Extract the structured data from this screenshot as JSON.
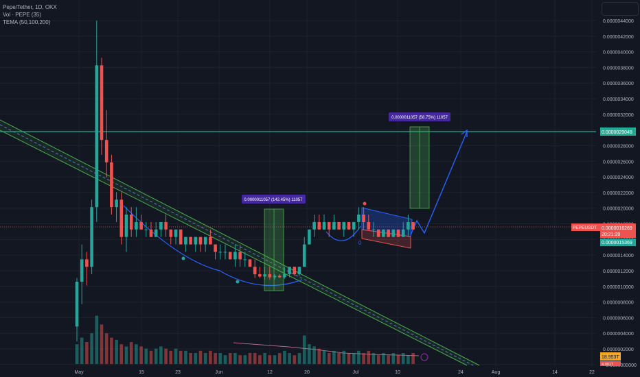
{
  "legend": {
    "symbol": "Pepe/Tether, 1D, OKX",
    "volume": "Vol · PEPE (35)",
    "tema": "TEMA (50,100,200)"
  },
  "price_axis": {
    "ticks": [
      "0.0000044000",
      "0.0000042000",
      "0.0000040000",
      "0.0000038000",
      "0.0000036000",
      "0.0000034000",
      "0.0000032000",
      "0.0000030000",
      "0.0000028000",
      "0.0000026000",
      "0.0000024000",
      "0.0000022000",
      "0.0000020000",
      "0.0000018000",
      "0.0000016000",
      "0.0000014000",
      "0.0000012000",
      "0.0000010000",
      "0.0000008000",
      "0.0000006000",
      "0.0000004000",
      "0.0000002000",
      "−0.0000000000"
    ],
    "target_label": "0.0000029048",
    "symbol_label": "PEPEUSDT",
    "last_price": "0.0000016269",
    "countdown": "20:21:39",
    "ma_value": "0.0000015369",
    "volume_label": "18.953T",
    "volume_label2": "4.991T"
  },
  "time_axis": {
    "labels": [
      "May",
      "15",
      "23",
      "Jun",
      "12",
      "20",
      "Jul",
      "10",
      "24",
      "Aug",
      "14",
      "22"
    ]
  },
  "annotations": {
    "measure1": "0.0000011057 (142.45%) 11057",
    "measure2": "0.0000011057 (58.75%) 11057",
    "marker_zero": "0"
  },
  "colors": {
    "background": "#131722",
    "up": "#26a69a",
    "down": "#ef5350",
    "target_line": "#22ab94",
    "curve": "#2962ff",
    "channel": "#4caf50",
    "label_bg": "#4527a0"
  },
  "chart_data": {
    "type": "candlestick",
    "title": "Pepe/Tether, 1D, OKX",
    "ylim": [
      -2e-07,
      4.5e-06
    ],
    "horizontal_line": 2.9048e-06,
    "last_price": 1.6269e-06,
    "candles": [
      {
        "o": 3e-07,
        "h": 9.5e-07,
        "l": 1e-07,
        "c": 9e-07
      },
      {
        "o": 9e-07,
        "h": 1.4e-06,
        "l": 6e-07,
        "c": 1.2e-06
      },
      {
        "o": 1.2e-06,
        "h": 1.3e-06,
        "l": 8.5e-07,
        "c": 1.1e-06
      },
      {
        "o": 1.1e-06,
        "h": 2e-06,
        "l": 1e-06,
        "c": 1.9e-06
      },
      {
        "o": 1.9e-06,
        "h": 4.4e-06,
        "l": 1.7e-06,
        "c": 3.8e-06
      },
      {
        "o": 3.8e-06,
        "h": 3.9e-06,
        "l": 2.6e-06,
        "c": 2.8e-06
      },
      {
        "o": 2.8e-06,
        "h": 3.2e-06,
        "l": 2.3e-06,
        "c": 2.5e-06
      },
      {
        "o": 2.5e-06,
        "h": 2.6e-06,
        "l": 1.8e-06,
        "c": 1.9e-06
      },
      {
        "o": 1.9e-06,
        "h": 2.1e-06,
        "l": 1.7e-06,
        "c": 2e-06
      },
      {
        "o": 2e-06,
        "h": 2.1e-06,
        "l": 1.4e-06,
        "c": 1.5e-06
      },
      {
        "o": 1.5e-06,
        "h": 1.9e-06,
        "l": 1.3e-06,
        "c": 1.8e-06
      },
      {
        "o": 1.8e-06,
        "h": 1.9e-06,
        "l": 1.5e-06,
        "c": 1.6e-06
      },
      {
        "o": 1.6e-06,
        "h": 1.9e-06,
        "l": 1.5e-06,
        "c": 1.7e-06
      },
      {
        "o": 1.7e-06,
        "h": 1.8e-06,
        "l": 1.6e-06,
        "c": 1.6e-06
      },
      {
        "o": 1.6e-06,
        "h": 1.7e-06,
        "l": 1.5e-06,
        "c": 1.6e-06
      },
      {
        "o": 1.6e-06,
        "h": 1.7e-06,
        "l": 1.5e-06,
        "c": 1.5e-06
      },
      {
        "o": 1.5e-06,
        "h": 1.7e-06,
        "l": 1.5e-06,
        "c": 1.6e-06
      },
      {
        "o": 1.6e-06,
        "h": 1.7e-06,
        "l": 1.5e-06,
        "c": 1.7e-06
      },
      {
        "o": 1.7e-06,
        "h": 1.8e-06,
        "l": 1.5e-06,
        "c": 1.6e-06
      },
      {
        "o": 1.6e-06,
        "h": 1.6e-06,
        "l": 1.4e-06,
        "c": 1.5e-06
      },
      {
        "o": 1.5e-06,
        "h": 1.6e-06,
        "l": 1.4e-06,
        "c": 1.6e-06
      },
      {
        "o": 1.6e-06,
        "h": 1.6e-06,
        "l": 1.4e-06,
        "c": 1.4e-06
      },
      {
        "o": 1.4e-06,
        "h": 1.5e-06,
        "l": 1.3e-06,
        "c": 1.5e-06
      },
      {
        "o": 1.5e-06,
        "h": 1.5e-06,
        "l": 1.4e-06,
        "c": 1.4e-06
      },
      {
        "o": 1.4e-06,
        "h": 1.5e-06,
        "l": 1.3e-06,
        "c": 1.5e-06
      },
      {
        "o": 1.5e-06,
        "h": 1.5e-06,
        "l": 1.3e-06,
        "c": 1.4e-06
      },
      {
        "o": 1.4e-06,
        "h": 1.5e-06,
        "l": 1.3e-06,
        "c": 1.5e-06
      },
      {
        "o": 1.5e-06,
        "h": 1.6e-06,
        "l": 1.4e-06,
        "c": 1.4e-06
      },
      {
        "o": 1.4e-06,
        "h": 1.4e-06,
        "l": 1.2e-06,
        "c": 1.3e-06
      },
      {
        "o": 1.3e-06,
        "h": 1.4e-06,
        "l": 1.2e-06,
        "c": 1.3e-06
      },
      {
        "o": 1.3e-06,
        "h": 1.4e-06,
        "l": 1.2e-06,
        "c": 1.3e-06
      },
      {
        "o": 1.3e-06,
        "h": 1.3e-06,
        "l": 1.2e-06,
        "c": 1.2e-06
      },
      {
        "o": 1.2e-06,
        "h": 1.4e-06,
        "l": 1.1e-06,
        "c": 1.3e-06
      },
      {
        "o": 1.3e-06,
        "h": 1.4e-06,
        "l": 1.1e-06,
        "c": 1.2e-06
      },
      {
        "o": 1.2e-06,
        "h": 1.3e-06,
        "l": 1.1e-06,
        "c": 1.2e-06
      },
      {
        "o": 1.2e-06,
        "h": 1.2e-06,
        "l": 1.1e-06,
        "c": 1.1e-06
      },
      {
        "o": 1.1e-06,
        "h": 1.2e-06,
        "l": 9.5e-07,
        "c": 1e-06
      },
      {
        "o": 1e-06,
        "h": 1.1e-06,
        "l": 9.5e-07,
        "c": 9.7e-07
      },
      {
        "o": 9.7e-07,
        "h": 1.1e-06,
        "l": 9.3e-07,
        "c": 1e-06
      },
      {
        "o": 1e-06,
        "h": 1.1e-06,
        "l": 9.3e-07,
        "c": 9.6e-07
      },
      {
        "o": 9.6e-07,
        "h": 1e-06,
        "l": 9.3e-07,
        "c": 9.8e-07
      },
      {
        "o": 9.8e-07,
        "h": 1e-06,
        "l": 9.5e-07,
        "c": 9.6e-07
      },
      {
        "o": 9.6e-07,
        "h": 1.1e-06,
        "l": 9.4e-07,
        "c": 1e-06
      },
      {
        "o": 1e-06,
        "h": 1.1e-06,
        "l": 9.6e-07,
        "c": 1.1e-06
      },
      {
        "o": 1.1e-06,
        "h": 1.1e-06,
        "l": 9.8e-07,
        "c": 1e-06
      },
      {
        "o": 1e-06,
        "h": 1.1e-06,
        "l": 9.8e-07,
        "c": 1.1e-06
      },
      {
        "o": 1.1e-06,
        "h": 1.5e-06,
        "l": 1.1e-06,
        "c": 1.4e-06
      },
      {
        "o": 1.4e-06,
        "h": 1.6e-06,
        "l": 1.4e-06,
        "c": 1.6e-06
      },
      {
        "o": 1.6e-06,
        "h": 1.8e-06,
        "l": 1.5e-06,
        "c": 1.7e-06
      },
      {
        "o": 1.7e-06,
        "h": 1.8e-06,
        "l": 1.6e-06,
        "c": 1.6e-06
      },
      {
        "o": 1.6e-06,
        "h": 1.8e-06,
        "l": 1.6e-06,
        "c": 1.7e-06
      },
      {
        "o": 1.7e-06,
        "h": 1.7e-06,
        "l": 1.5e-06,
        "c": 1.6e-06
      },
      {
        "o": 1.6e-06,
        "h": 1.8e-06,
        "l": 1.6e-06,
        "c": 1.7e-06
      },
      {
        "o": 1.7e-06,
        "h": 1.7e-06,
        "l": 1.6e-06,
        "c": 1.6e-06
      },
      {
        "o": 1.6e-06,
        "h": 1.7e-06,
        "l": 1.5e-06,
        "c": 1.7e-06
      },
      {
        "o": 1.7e-06,
        "h": 1.7e-06,
        "l": 1.6e-06,
        "c": 1.6e-06
      },
      {
        "o": 1.6e-06,
        "h": 1.7e-06,
        "l": 1.5e-06,
        "c": 1.7e-06
      },
      {
        "o": 1.7e-06,
        "h": 1.9e-06,
        "l": 1.6e-06,
        "c": 1.8e-06
      },
      {
        "o": 1.8e-06,
        "h": 1.9e-06,
        "l": 1.6e-06,
        "c": 1.7e-06
      },
      {
        "o": 1.7e-06,
        "h": 1.8e-06,
        "l": 1.6e-06,
        "c": 1.6e-06
      },
      {
        "o": 1.6e-06,
        "h": 1.7e-06,
        "l": 1.5e-06,
        "c": 1.6e-06
      },
      {
        "o": 1.6e-06,
        "h": 1.6e-06,
        "l": 1.5e-06,
        "c": 1.5e-06
      },
      {
        "o": 1.5e-06,
        "h": 1.6e-06,
        "l": 1.5e-06,
        "c": 1.6e-06
      },
      {
        "o": 1.6e-06,
        "h": 1.6e-06,
        "l": 1.5e-06,
        "c": 1.5e-06
      },
      {
        "o": 1.5e-06,
        "h": 1.6e-06,
        "l": 1.5e-06,
        "c": 1.6e-06
      },
      {
        "o": 1.6e-06,
        "h": 1.6e-06,
        "l": 1.5e-06,
        "c": 1.5e-06
      },
      {
        "o": 1.5e-06,
        "h": 1.7e-06,
        "l": 1.5e-06,
        "c": 1.6e-06
      },
      {
        "o": 1.6e-06,
        "h": 1.8e-06,
        "l": 1.5e-06,
        "c": 1.7e-06
      },
      {
        "o": 1.7e-06,
        "h": 1.7e-06,
        "l": 1.6e-06,
        "c": 1.6e-06
      }
    ],
    "volume": [
      9,
      12,
      10,
      14,
      22,
      18,
      14,
      12,
      11,
      9,
      8,
      10,
      9,
      8,
      7,
      6,
      7,
      8,
      7,
      6,
      7,
      6,
      6,
      5,
      5,
      6,
      5,
      6,
      5,
      5,
      4,
      5,
      5,
      4,
      4,
      5,
      5,
      4,
      5,
      4,
      4,
      5,
      6,
      5,
      4,
      5,
      13,
      9,
      8,
      7,
      6,
      5,
      6,
      5,
      6,
      5,
      5,
      6,
      5,
      6,
      5,
      4,
      5,
      4,
      5,
      4,
      5,
      4,
      5
    ]
  }
}
